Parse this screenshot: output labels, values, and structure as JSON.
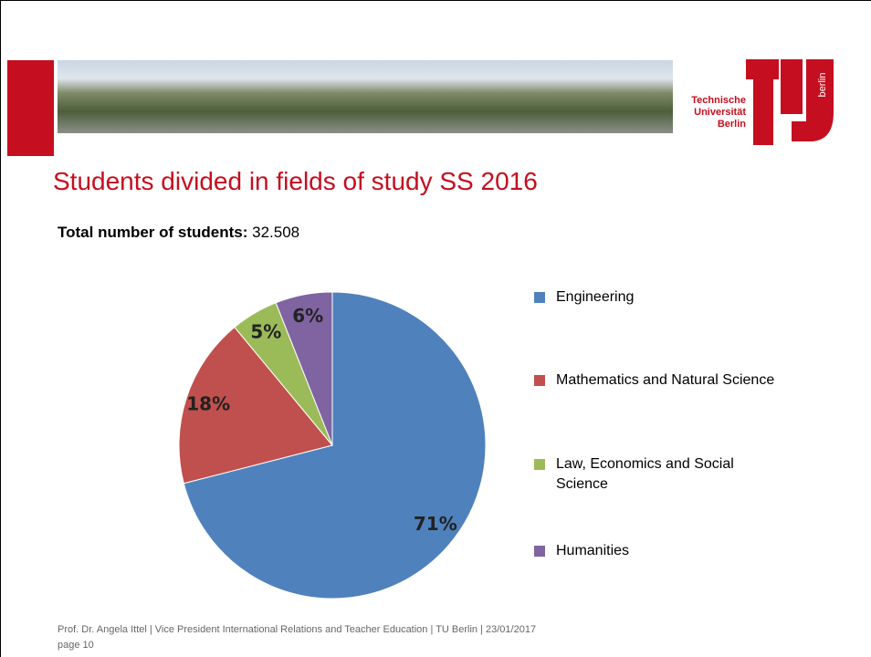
{
  "header": {
    "logo_text": "Technische Universität Berlin",
    "logo_side": "berlin"
  },
  "title": "Students divided in fields of study SS 2016",
  "total": {
    "label": "Total number of students:",
    "value": "32.508"
  },
  "chart_data": {
    "type": "pie",
    "categories": [
      "Engineering",
      "Mathematics and Natural Science",
      "Law, Economics and Social Science",
      "Humanities"
    ],
    "values": [
      71,
      18,
      5,
      6
    ],
    "value_labels": [
      "71%",
      "18%",
      "5%",
      "6%"
    ],
    "colors": [
      "#4f81bd",
      "#c0504d",
      "#9bbb59",
      "#8064a2"
    ]
  },
  "footer": {
    "line1": "Prof. Dr. Angela Ittel | Vice President International Relations and Teacher Education | TU Berlin | 23/01/2017",
    "line2": "page 10"
  }
}
